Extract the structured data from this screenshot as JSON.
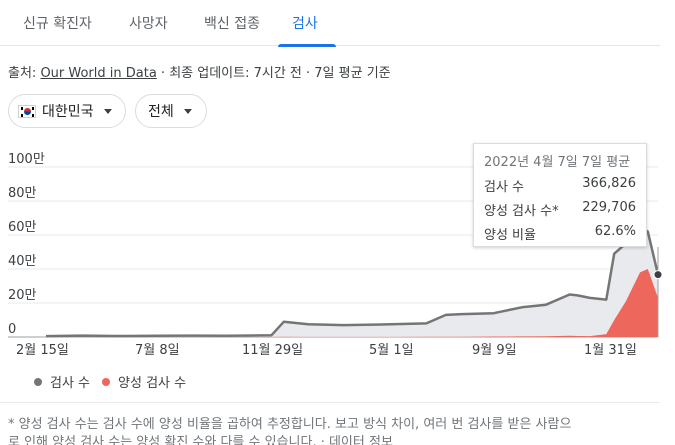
{
  "tabs": [
    {
      "label": "신규 확진자"
    },
    {
      "label": "사망자"
    },
    {
      "label": "백신 접종"
    },
    {
      "label": "검사"
    }
  ],
  "source": {
    "prefix": "출처: ",
    "link": "Our World in Data",
    "suffix": " · 최종 업데이트: 7시간 전 · 7일 평균 기준"
  },
  "filters": {
    "country": "대한민국",
    "country_icon": "south-korea-flag-icon",
    "scope": "전체"
  },
  "tooltip": {
    "title": "2022년 4월 7일 7일 평균",
    "rows": [
      {
        "label": "검사 수",
        "value": "366,826"
      },
      {
        "label": "양성 검사 수*",
        "value": "229,706"
      },
      {
        "label": "양성 비율",
        "value": "62.6%"
      }
    ]
  },
  "legend": {
    "tests": "검사 수",
    "positives": "양성 검사 수"
  },
  "footnote": {
    "line1": "* 양성 검사 수는 검사 수에 양성 비율을 곱하여 추정합니다. 보고 방식 차이, 여러 번 검사를 받은 사람으",
    "line2": "로 인해 양성 검사 수는 양성 확진 수와 다를 수 있습니다. · 데이터 정보"
  },
  "colors": {
    "tests_line": "#757575",
    "tests_fill": "#e8eaed",
    "positives": "#ee675c",
    "accent": "#1a73e8"
  },
  "chart_data": {
    "type": "area",
    "yticks": [
      "0",
      "20만",
      "40만",
      "60만",
      "80만",
      "100만"
    ],
    "ylim": [
      0,
      1000000
    ],
    "xticks": [
      "2월 15일",
      "7월 8일",
      "11월 29일",
      "5월 1일",
      "9월 9일",
      "1월 31일"
    ],
    "x": [
      "2020-02-15",
      "2020-04-01",
      "2020-05-15",
      "2020-07-08",
      "2020-08-20",
      "2020-10-01",
      "2020-11-29",
      "2020-12-15",
      "2021-01-15",
      "2021-03-01",
      "2021-05-01",
      "2021-06-15",
      "2021-07-10",
      "2021-07-30",
      "2021-09-09",
      "2021-10-15",
      "2021-11-15",
      "2021-12-15",
      "2021-12-25",
      "2022-01-10",
      "2022-01-31",
      "2022-02-10",
      "2022-02-25",
      "2022-03-15",
      "2022-03-25",
      "2022-04-07"
    ],
    "series": [
      {
        "name": "검사 수",
        "values": [
          5000,
          8000,
          6000,
          7000,
          8000,
          7000,
          10000,
          90000,
          75000,
          70000,
          75000,
          80000,
          130000,
          135000,
          140000,
          175000,
          190000,
          250000,
          245000,
          230000,
          220000,
          490000,
          550000,
          650000,
          620000,
          366826
        ]
      },
      {
        "name": "양성 검사 수",
        "values": [
          0,
          0,
          0,
          0,
          0,
          0,
          500,
          1000,
          800,
          500,
          800,
          1200,
          2000,
          2000,
          3000,
          3500,
          4000,
          7000,
          6000,
          5000,
          17000,
          100000,
          210000,
          380000,
          400000,
          229706
        ]
      }
    ]
  }
}
